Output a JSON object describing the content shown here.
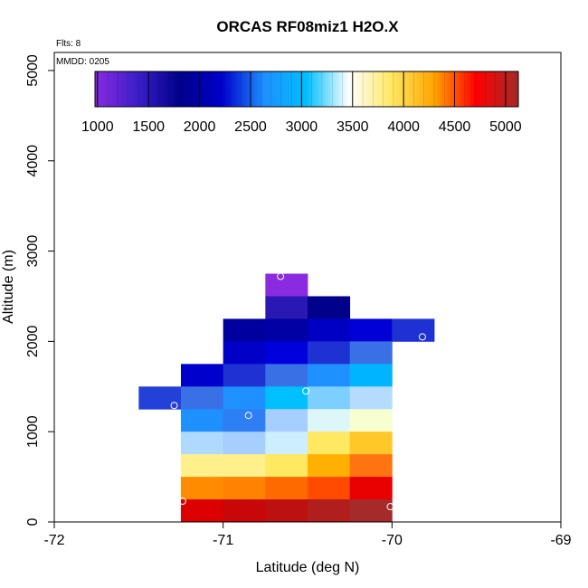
{
  "chart_data": {
    "type": "heatmap",
    "title": "ORCAS RF08miz1 H2O.X",
    "xlabel": "Latitude (deg N)",
    "ylabel": "Altitude (m)",
    "xlim": [
      -72,
      -69
    ],
    "ylim": [
      0,
      5200
    ],
    "x_ticks": [
      -72,
      -71,
      -70,
      -69
    ],
    "x_tick_labels": [
      "-72",
      "-71",
      "-70",
      "-69"
    ],
    "y_ticks": [
      0,
      1000,
      2000,
      3000,
      4000,
      5000
    ],
    "y_tick_labels": [
      "0",
      "1000",
      "2000",
      "3000",
      "4000",
      "5000"
    ],
    "annotations": {
      "flights": "Flts: 8",
      "date": "MMDD: 0205"
    },
    "colorbar": {
      "ticks": [
        1000,
        1500,
        2000,
        2500,
        3000,
        3500,
        4000,
        4500,
        5000
      ],
      "tick_labels": [
        "1000",
        "1500",
        "2000",
        "2500",
        "3000",
        "3500",
        "4000",
        "4500",
        "5000"
      ],
      "range": [
        975,
        5125
      ],
      "colors": [
        "#8a2be2",
        "#3b1ec8",
        "#00008b",
        "#0000cd",
        "#1e90ff",
        "#00bfff",
        "#ffffff",
        "#ffe862",
        "#ffa500",
        "#ff0000",
        "#a52a2a"
      ]
    },
    "cell_width_deg": 0.25,
    "cell_height_m": 250,
    "cells": [
      {
        "lat": -70.625,
        "alt": 2625,
        "color": "#8a2be2",
        "value": 1000
      },
      {
        "lat": -70.625,
        "alt": 2375,
        "color": "#2a18b5",
        "value": 1150
      },
      {
        "lat": -70.375,
        "alt": 2375,
        "color": "#00008b",
        "value": 1300
      },
      {
        "lat": -70.875,
        "alt": 2125,
        "color": "#00009e",
        "value": 1400
      },
      {
        "lat": -70.625,
        "alt": 2125,
        "color": "#0000a5",
        "value": 1450
      },
      {
        "lat": -70.375,
        "alt": 2125,
        "color": "#0000c4",
        "value": 1600
      },
      {
        "lat": -70.125,
        "alt": 2125,
        "color": "#0000d6",
        "value": 1700
      },
      {
        "lat": -69.875,
        "alt": 2125,
        "color": "#1e32d4",
        "value": 1750
      },
      {
        "lat": -70.875,
        "alt": 1875,
        "color": "#0000c8",
        "value": 1600
      },
      {
        "lat": -70.625,
        "alt": 1875,
        "color": "#0000dc",
        "value": 1700
      },
      {
        "lat": -70.375,
        "alt": 1875,
        "color": "#1e32d4",
        "value": 1800
      },
      {
        "lat": -70.125,
        "alt": 1875,
        "color": "#3a70e6",
        "value": 2050
      },
      {
        "lat": -71.125,
        "alt": 1625,
        "color": "#0000cd",
        "value": 1650
      },
      {
        "lat": -70.875,
        "alt": 1625,
        "color": "#1e32d4",
        "value": 1800
      },
      {
        "lat": -70.625,
        "alt": 1625,
        "color": "#3a70e6",
        "value": 2100
      },
      {
        "lat": -70.375,
        "alt": 1625,
        "color": "#1e90ff",
        "value": 2300
      },
      {
        "lat": -70.125,
        "alt": 1625,
        "color": "#00b4ff",
        "value": 2550
      },
      {
        "lat": -71.375,
        "alt": 1375,
        "color": "#2340d8",
        "value": 1850
      },
      {
        "lat": -71.125,
        "alt": 1375,
        "color": "#3a70e6",
        "value": 2100
      },
      {
        "lat": -70.875,
        "alt": 1375,
        "color": "#1e90ff",
        "value": 2350
      },
      {
        "lat": -70.625,
        "alt": 1375,
        "color": "#00bfff",
        "value": 2600
      },
      {
        "lat": -70.375,
        "alt": 1375,
        "color": "#7ccfff",
        "value": 2750
      },
      {
        "lat": -70.125,
        "alt": 1375,
        "color": "#b3dcff",
        "value": 2850
      },
      {
        "lat": -71.125,
        "alt": 1125,
        "color": "#1e90ff",
        "value": 2350
      },
      {
        "lat": -70.875,
        "alt": 1125,
        "color": "#2e7ef4",
        "value": 2200
      },
      {
        "lat": -70.625,
        "alt": 1125,
        "color": "#a6ceff",
        "value": 2850
      },
      {
        "lat": -70.375,
        "alt": 1125,
        "color": "#ddf6f8",
        "value": 3050
      },
      {
        "lat": -70.125,
        "alt": 1125,
        "color": "#f7ffd0",
        "value": 3250
      },
      {
        "lat": -71.125,
        "alt": 875,
        "color": "#b0d9ff",
        "value": 2880
      },
      {
        "lat": -70.875,
        "alt": 875,
        "color": "#a6ceff",
        "value": 2850
      },
      {
        "lat": -70.625,
        "alt": 875,
        "color": "#cdeeff",
        "value": 2950
      },
      {
        "lat": -70.375,
        "alt": 875,
        "color": "#ffe862",
        "value": 3600
      },
      {
        "lat": -70.125,
        "alt": 875,
        "color": "#ffc728",
        "value": 3800
      },
      {
        "lat": -71.125,
        "alt": 625,
        "color": "#fff08c",
        "value": 3450
      },
      {
        "lat": -70.875,
        "alt": 625,
        "color": "#fff08c",
        "value": 3450
      },
      {
        "lat": -70.625,
        "alt": 625,
        "color": "#ffe862",
        "value": 3600
      },
      {
        "lat": -70.375,
        "alt": 625,
        "color": "#ffb000",
        "value": 3950
      },
      {
        "lat": -70.125,
        "alt": 625,
        "color": "#ff7410",
        "value": 4250
      },
      {
        "lat": -71.125,
        "alt": 375,
        "color": "#ff8c00",
        "value": 4100
      },
      {
        "lat": -70.875,
        "alt": 375,
        "color": "#ff8200",
        "value": 4150
      },
      {
        "lat": -70.625,
        "alt": 375,
        "color": "#ff6a00",
        "value": 4300
      },
      {
        "lat": -70.375,
        "alt": 375,
        "color": "#ff4a00",
        "value": 4450
      },
      {
        "lat": -70.125,
        "alt": 375,
        "color": "#e80000",
        "value": 4650
      },
      {
        "lat": -71.125,
        "alt": 125,
        "color": "#dd0000",
        "value": 4700
      },
      {
        "lat": -70.875,
        "alt": 125,
        "color": "#c80808",
        "value": 4800
      },
      {
        "lat": -70.625,
        "alt": 125,
        "color": "#bd1010",
        "value": 4850
      },
      {
        "lat": -70.375,
        "alt": 125,
        "color": "#b01e1e",
        "value": 4950
      },
      {
        "lat": -70.125,
        "alt": 125,
        "color": "#a52a2a",
        "value": 5050
      }
    ],
    "points": [
      {
        "lat": -70.66,
        "alt": 2720
      },
      {
        "lat": -69.82,
        "alt": 2050
      },
      {
        "lat": -70.51,
        "alt": 1450
      },
      {
        "lat": -71.29,
        "alt": 1290
      },
      {
        "lat": -70.85,
        "alt": 1180
      },
      {
        "lat": -71.24,
        "alt": 230
      },
      {
        "lat": -70.01,
        "alt": 170
      }
    ]
  }
}
